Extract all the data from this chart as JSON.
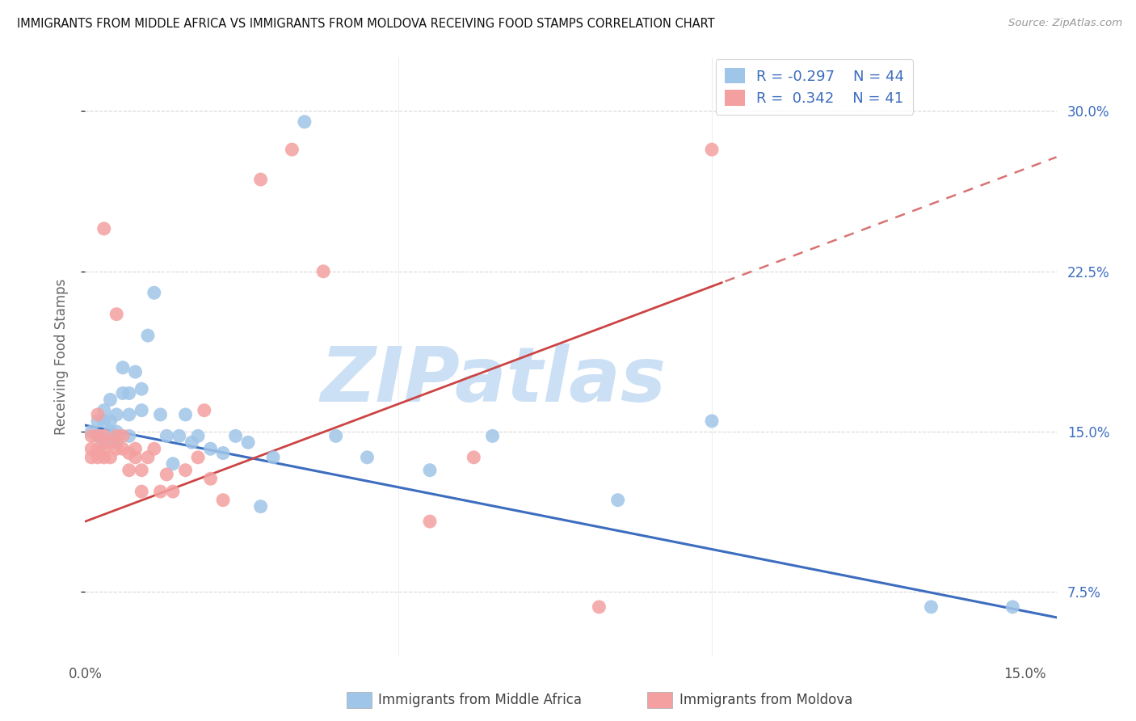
{
  "title": "IMMIGRANTS FROM MIDDLE AFRICA VS IMMIGRANTS FROM MOLDOVA RECEIVING FOOD STAMPS CORRELATION CHART",
  "source": "Source: ZipAtlas.com",
  "ylabel": "Receiving Food Stamps",
  "legend1_label": "Immigrants from Middle Africa",
  "legend2_label": "Immigrants from Moldova",
  "legend_r1": "R = -0.297",
  "legend_n1": "N = 44",
  "legend_r2": "R =  0.342",
  "legend_n2": "N = 41",
  "xlim": [
    0.0,
    0.155
  ],
  "ylim": [
    0.045,
    0.325
  ],
  "yticks": [
    0.075,
    0.15,
    0.225,
    0.3
  ],
  "yticklabels": [
    "7.5%",
    "15.0%",
    "22.5%",
    "30.0%"
  ],
  "blue_color": "#9fc5e8",
  "pink_color": "#f4a0a0",
  "blue_line_color": "#3d6dbf",
  "pink_line_color": "#cc4444",
  "watermark_text": "ZIPatlas",
  "watermark_color": "#cce0f5",
  "blue_x": [
    0.001,
    0.002,
    0.002,
    0.003,
    0.003,
    0.003,
    0.004,
    0.004,
    0.004,
    0.005,
    0.005,
    0.005,
    0.006,
    0.006,
    0.007,
    0.007,
    0.007,
    0.008,
    0.009,
    0.009,
    0.01,
    0.011,
    0.012,
    0.013,
    0.014,
    0.015,
    0.016,
    0.017,
    0.018,
    0.02,
    0.022,
    0.024,
    0.026,
    0.028,
    0.03,
    0.035,
    0.04,
    0.045,
    0.055,
    0.065,
    0.085,
    0.1,
    0.135,
    0.148
  ],
  "blue_y": [
    0.15,
    0.148,
    0.155,
    0.145,
    0.155,
    0.16,
    0.15,
    0.155,
    0.165,
    0.145,
    0.15,
    0.158,
    0.168,
    0.18,
    0.148,
    0.158,
    0.168,
    0.178,
    0.16,
    0.17,
    0.195,
    0.215,
    0.158,
    0.148,
    0.135,
    0.148,
    0.158,
    0.145,
    0.148,
    0.142,
    0.14,
    0.148,
    0.145,
    0.115,
    0.138,
    0.295,
    0.148,
    0.138,
    0.132,
    0.148,
    0.118,
    0.155,
    0.068,
    0.068
  ],
  "pink_x": [
    0.001,
    0.001,
    0.001,
    0.002,
    0.002,
    0.002,
    0.002,
    0.003,
    0.003,
    0.003,
    0.003,
    0.004,
    0.004,
    0.005,
    0.005,
    0.005,
    0.006,
    0.006,
    0.007,
    0.007,
    0.008,
    0.008,
    0.009,
    0.009,
    0.01,
    0.011,
    0.012,
    0.013,
    0.014,
    0.016,
    0.018,
    0.019,
    0.02,
    0.022,
    0.028,
    0.033,
    0.038,
    0.055,
    0.062,
    0.082,
    0.1
  ],
  "pink_y": [
    0.138,
    0.142,
    0.148,
    0.138,
    0.142,
    0.148,
    0.158,
    0.138,
    0.142,
    0.148,
    0.245,
    0.138,
    0.145,
    0.142,
    0.148,
    0.205,
    0.142,
    0.148,
    0.132,
    0.14,
    0.138,
    0.142,
    0.122,
    0.132,
    0.138,
    0.142,
    0.122,
    0.13,
    0.122,
    0.132,
    0.138,
    0.16,
    0.128,
    0.118,
    0.268,
    0.282,
    0.225,
    0.108,
    0.138,
    0.068,
    0.282
  ],
  "blue_intercept": 0.153,
  "blue_slope": -0.58,
  "pink_intercept": 0.108,
  "pink_slope": 1.1
}
